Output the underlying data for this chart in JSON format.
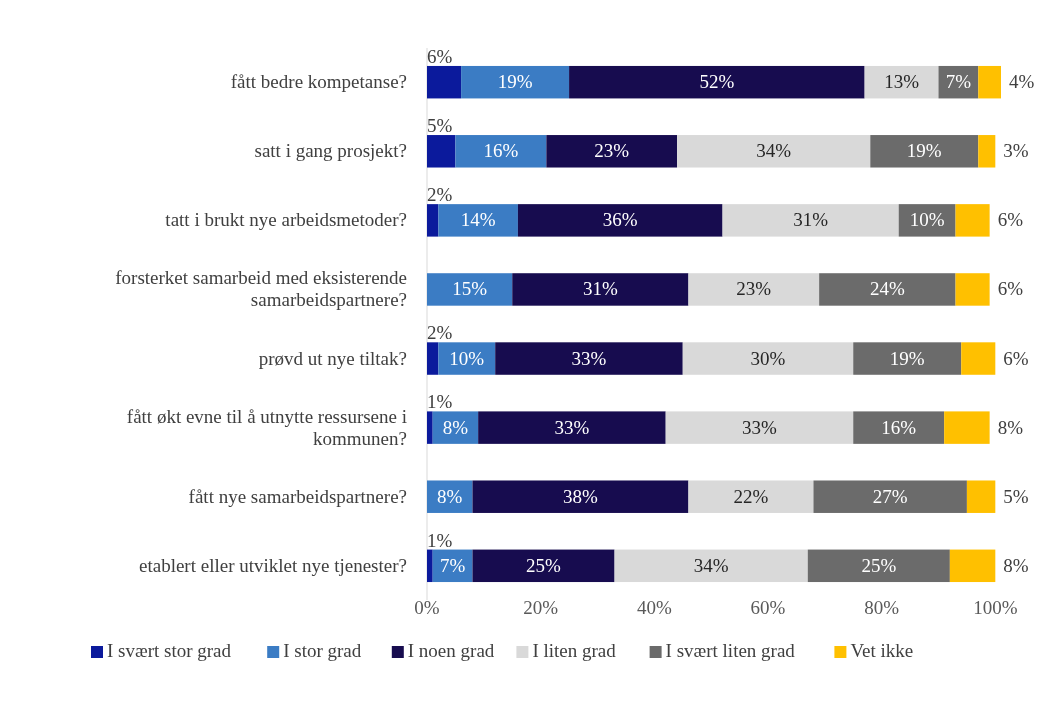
{
  "chart_data": {
    "type": "bar",
    "orientation": "horizontal",
    "stacked": true,
    "categories": [
      "fått bedre kompetanse?",
      "satt i gang prosjekt?",
      "tatt i brukt nye arbeidsmetoder?",
      "forsterket samarbeid med eksisterende samarbeidspartnere?",
      "prøvd ut nye tiltak?",
      "fått økt evne til å utnytte ressursene i kommunen?",
      "fått nye samarbeidspartnere?",
      "etablert eller utviklet nye tjenester?"
    ],
    "series": [
      {
        "name": "I svært stor grad",
        "color": "#0b1a9c",
        "values": [
          6,
          5,
          2,
          null,
          2,
          1,
          null,
          1
        ],
        "value_labels": [
          "6%",
          "5%",
          "2%",
          null,
          "2%",
          "1%",
          null,
          "1%"
        ]
      },
      {
        "name": "I stor grad",
        "color": "#3b7cc4",
        "values": [
          19,
          16,
          14,
          15,
          10,
          8,
          8,
          7
        ],
        "value_labels": [
          "19%",
          "16%",
          "14%",
          "15%",
          "10%",
          "8%",
          "8%",
          "7%"
        ]
      },
      {
        "name": "I noen grad",
        "color": "#170c4f",
        "values": [
          52,
          23,
          36,
          31,
          33,
          33,
          38,
          25
        ],
        "value_labels": [
          "52%",
          "23%",
          "36%",
          "31%",
          "33%",
          "33%",
          "38%",
          "25%"
        ]
      },
      {
        "name": "I liten grad",
        "color": "#d9d9d9",
        "values": [
          13,
          34,
          31,
          23,
          30,
          33,
          22,
          34
        ],
        "value_labels": [
          "13%",
          "34%",
          "31%",
          "23%",
          "30%",
          "33%",
          "22%",
          "34%"
        ]
      },
      {
        "name": "I svært liten grad",
        "color": "#6b6b6b",
        "values": [
          7,
          19,
          10,
          24,
          19,
          16,
          27,
          25
        ],
        "value_labels": [
          "7%",
          "19%",
          "10%",
          "24%",
          "19%",
          "16%",
          "27%",
          "25%"
        ]
      },
      {
        "name": "Vet ikke",
        "color": "#ffc000",
        "values": [
          4,
          3,
          6,
          6,
          6,
          8,
          5,
          8
        ],
        "value_labels": [
          "4%",
          "3%",
          "6%",
          "6%",
          "6%",
          "8%",
          "5%",
          "8%"
        ]
      }
    ],
    "xlim": [
      0,
      101
    ],
    "xticks": [
      {
        "value": 0,
        "label": "0%"
      },
      {
        "value": 20,
        "label": "20%"
      },
      {
        "value": 40,
        "label": "40%"
      },
      {
        "value": 60,
        "label": "60%"
      },
      {
        "value": 80,
        "label": "80%"
      },
      {
        "value": 100,
        "label": "100%"
      }
    ],
    "grid": false,
    "legend": "bottom"
  }
}
